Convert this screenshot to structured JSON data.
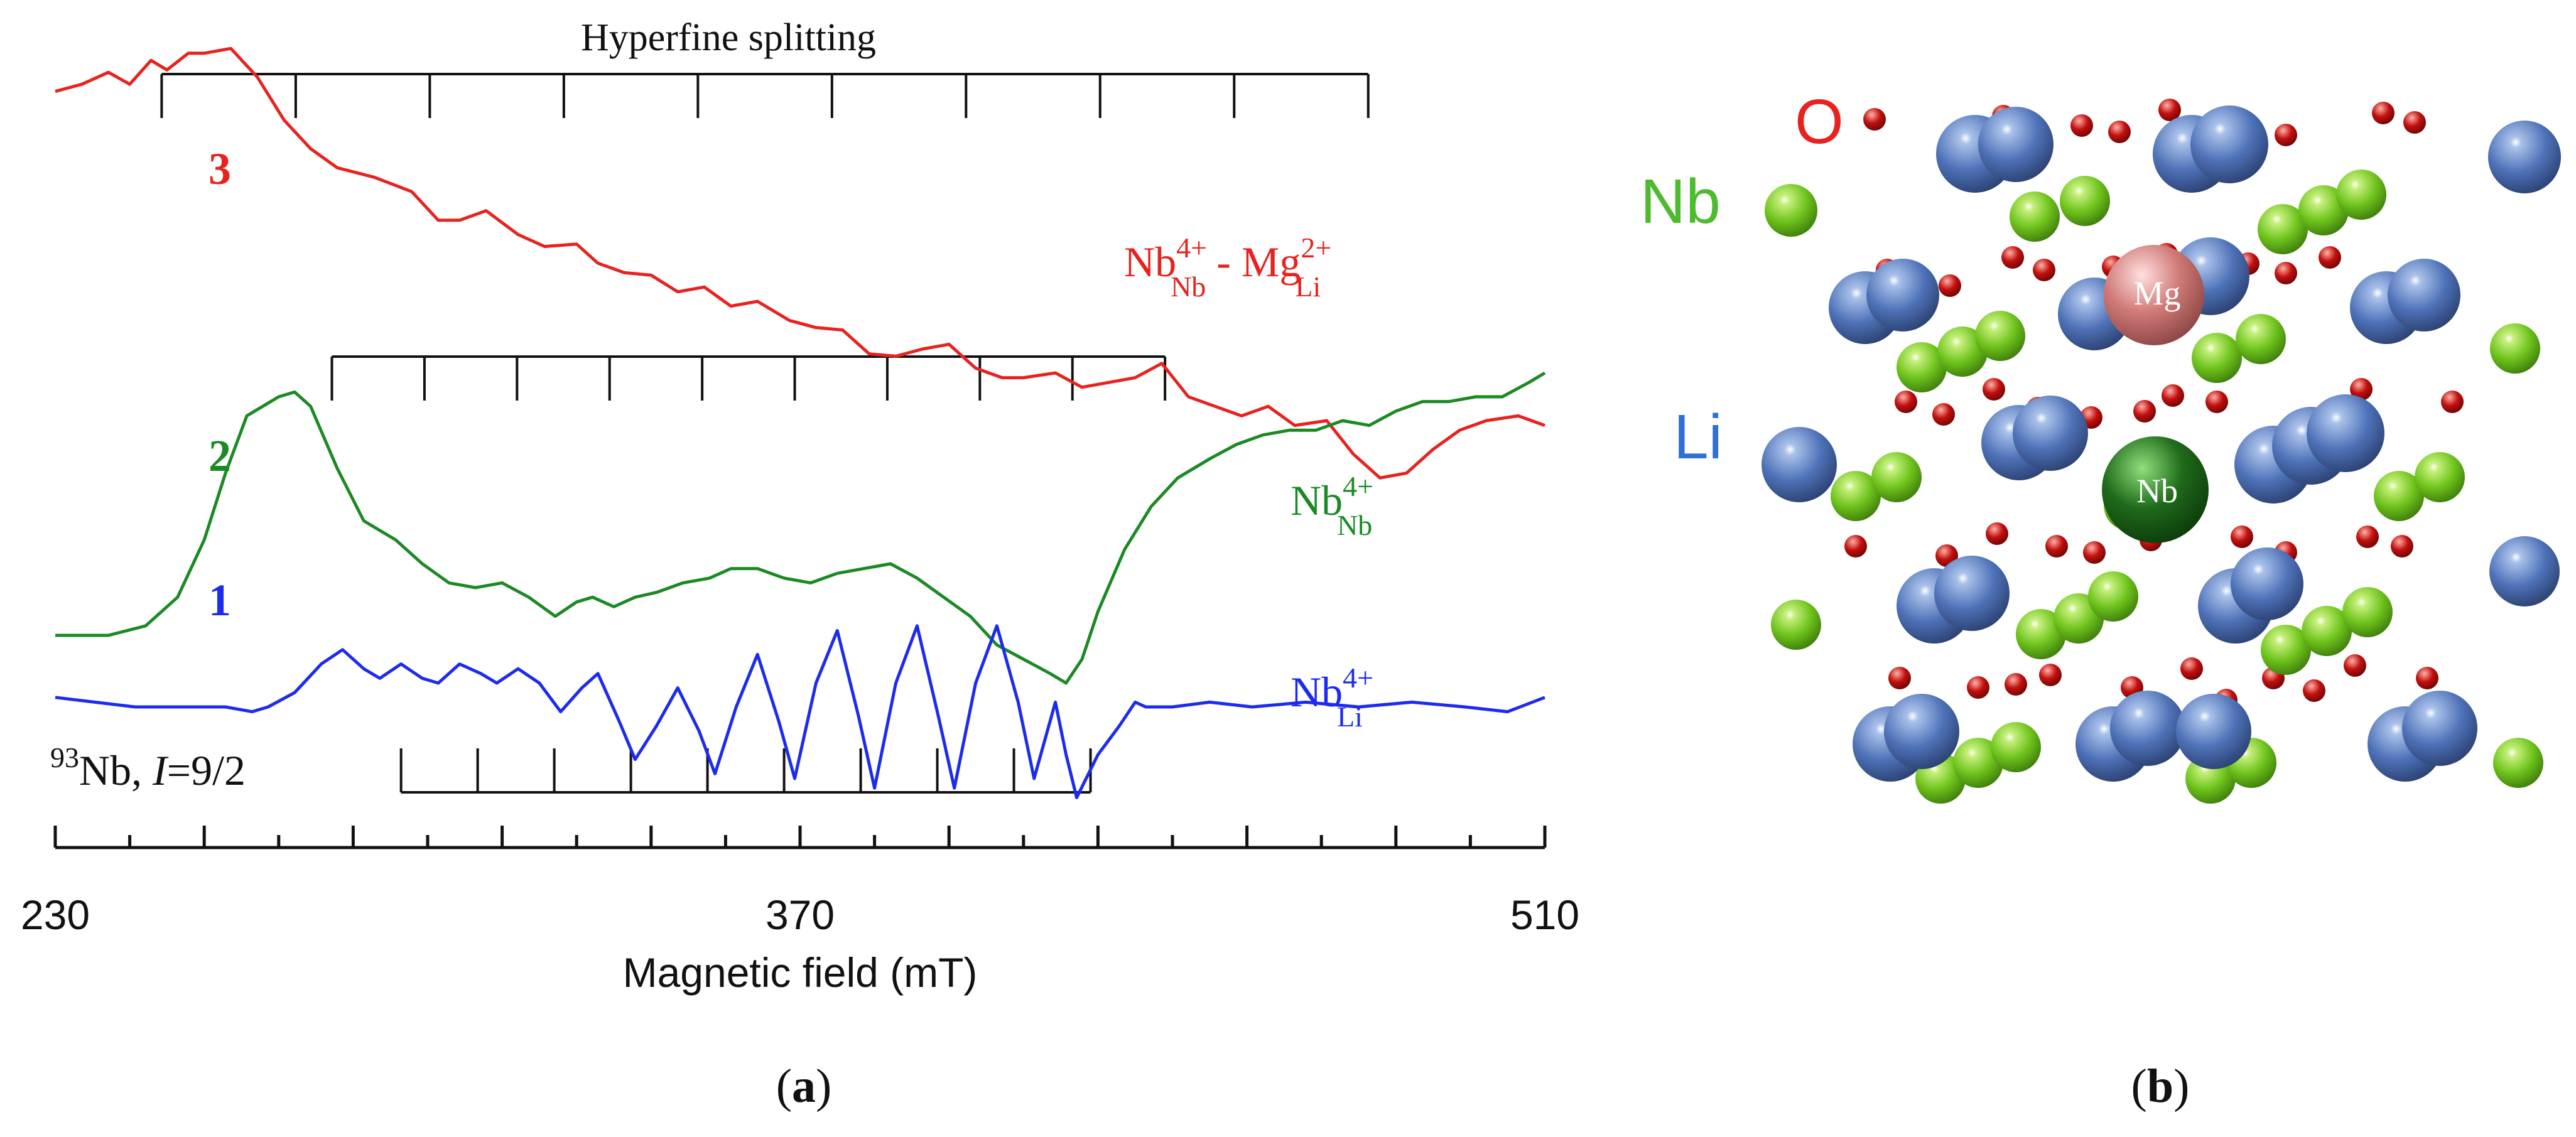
{
  "chart_data": {
    "type": "line",
    "xlabel": "Magnetic field (mT)",
    "xlim": [
      230,
      510
    ],
    "x_tick_labels": [
      230,
      370,
      510
    ],
    "x_major_step": 28,
    "x_minor_step": 14,
    "hyperfine_title": "Hyperfine splitting",
    "nucleus_label": {
      "iso": "93",
      "el": "Nb, ",
      "italic": "I",
      "rest": "=9/2"
    },
    "series": [
      {
        "id": "3",
        "name": "Nb4+Nb - Mg2+Li",
        "color": "#e8221e",
        "label_num": "3",
        "label_parts": {
          "main1": "Nb",
          "sup1": "4+",
          "sub1": "Nb",
          "mid": " - Mg",
          "sup2": "2+",
          "sub2": "Li"
        },
        "points": [
          [
            230,
            0.06
          ],
          [
            235,
            0.045
          ],
          [
            240,
            0.02
          ],
          [
            244,
            0.045
          ],
          [
            248,
            -0.005
          ],
          [
            251,
            0.015
          ],
          [
            255,
            -0.02
          ],
          [
            258,
            -0.02
          ],
          [
            263,
            -0.03
          ],
          [
            268,
            0.03
          ],
          [
            273,
            0.12
          ],
          [
            278,
            0.18
          ],
          [
            283,
            0.22
          ],
          [
            290,
            0.24
          ],
          [
            297,
            0.27
          ],
          [
            302,
            0.33
          ],
          [
            306,
            0.33
          ],
          [
            311,
            0.31
          ],
          [
            317,
            0.36
          ],
          [
            322,
            0.385
          ],
          [
            328,
            0.38
          ],
          [
            332,
            0.42
          ],
          [
            337,
            0.44
          ],
          [
            342,
            0.445
          ],
          [
            347,
            0.48
          ],
          [
            352,
            0.47
          ],
          [
            357,
            0.51
          ],
          [
            362,
            0.5
          ],
          [
            368,
            0.54
          ],
          [
            373,
            0.555
          ],
          [
            378,
            0.56
          ],
          [
            383,
            0.61
          ],
          [
            388,
            0.615
          ],
          [
            393,
            0.6
          ],
          [
            398,
            0.59
          ],
          [
            403,
            0.64
          ],
          [
            408,
            0.66
          ],
          [
            412,
            0.66
          ],
          [
            418,
            0.65
          ],
          [
            423,
            0.68
          ],
          [
            428,
            0.67
          ],
          [
            433,
            0.66
          ],
          [
            438,
            0.63
          ],
          [
            443,
            0.7
          ],
          [
            448,
            0.72
          ],
          [
            453,
            0.74
          ],
          [
            458,
            0.72
          ],
          [
            463,
            0.76
          ],
          [
            469,
            0.75
          ],
          [
            474,
            0.82
          ],
          [
            479,
            0.87
          ],
          [
            484,
            0.86
          ],
          [
            489,
            0.81
          ],
          [
            494,
            0.77
          ],
          [
            499,
            0.75
          ],
          [
            505,
            0.74
          ],
          [
            510,
            0.76
          ]
        ]
      },
      {
        "id": "2",
        "name": "Nb4+Nb",
        "color": "#1b8a24",
        "label_num": "2",
        "label_parts": {
          "main1": "Nb",
          "sup1": "4+",
          "sub1": "Nb"
        },
        "points": [
          [
            230,
            1.2
          ],
          [
            240,
            1.2
          ],
          [
            247,
            1.18
          ],
          [
            253,
            1.12
          ],
          [
            258,
            1.0
          ],
          [
            262,
            0.86
          ],
          [
            266,
            0.74
          ],
          [
            269,
            0.72
          ],
          [
            272,
            0.7
          ],
          [
            275,
            0.69
          ],
          [
            278,
            0.72
          ],
          [
            283,
            0.85
          ],
          [
            288,
            0.96
          ],
          [
            294,
            1.0
          ],
          [
            299,
            1.05
          ],
          [
            304,
            1.09
          ],
          [
            309,
            1.1
          ],
          [
            314,
            1.09
          ],
          [
            319,
            1.12
          ],
          [
            324,
            1.16
          ],
          [
            328,
            1.13
          ],
          [
            331,
            1.12
          ],
          [
            335,
            1.14
          ],
          [
            339,
            1.12
          ],
          [
            343,
            1.11
          ],
          [
            348,
            1.09
          ],
          [
            353,
            1.08
          ],
          [
            357,
            1.06
          ],
          [
            362,
            1.06
          ],
          [
            367,
            1.08
          ],
          [
            372,
            1.09
          ],
          [
            377,
            1.07
          ],
          [
            382,
            1.06
          ],
          [
            387,
            1.05
          ],
          [
            392,
            1.08
          ],
          [
            397,
            1.12
          ],
          [
            402,
            1.16
          ],
          [
            407,
            1.22
          ],
          [
            412,
            1.25
          ],
          [
            417,
            1.28
          ],
          [
            420,
            1.3
          ],
          [
            423,
            1.25
          ],
          [
            426,
            1.15
          ],
          [
            431,
            1.02
          ],
          [
            436,
            0.93
          ],
          [
            441,
            0.87
          ],
          [
            447,
            0.83
          ],
          [
            452,
            0.8
          ],
          [
            457,
            0.78
          ],
          [
            462,
            0.77
          ],
          [
            467,
            0.77
          ],
          [
            472,
            0.75
          ],
          [
            477,
            0.76
          ],
          [
            482,
            0.73
          ],
          [
            487,
            0.71
          ],
          [
            492,
            0.71
          ],
          [
            497,
            0.7
          ],
          [
            502,
            0.7
          ],
          [
            507,
            0.67
          ],
          [
            510,
            0.65
          ]
        ]
      },
      {
        "id": "1",
        "name": "Nb4+Li",
        "color": "#1d2bf0",
        "label_num": "1",
        "label_parts": {
          "main1": "Nb",
          "sup1": "4+",
          "sub1": "Li"
        },
        "points": [
          [
            230,
            1.33
          ],
          [
            245,
            1.35
          ],
          [
            255,
            1.35
          ],
          [
            262,
            1.35
          ],
          [
            267,
            1.36
          ],
          [
            270,
            1.35
          ],
          [
            275,
            1.32
          ],
          [
            280,
            1.26
          ],
          [
            284,
            1.23
          ],
          [
            288,
            1.27
          ],
          [
            291,
            1.29
          ],
          [
            295,
            1.26
          ],
          [
            299,
            1.29
          ],
          [
            302,
            1.3
          ],
          [
            306,
            1.26
          ],
          [
            310,
            1.28
          ],
          [
            313,
            1.3
          ],
          [
            317,
            1.27
          ],
          [
            321,
            1.3
          ],
          [
            325,
            1.36
          ],
          [
            329,
            1.31
          ],
          [
            332,
            1.28
          ],
          [
            336,
            1.38
          ],
          [
            339,
            1.46
          ],
          [
            343,
            1.39
          ],
          [
            347,
            1.31
          ],
          [
            351,
            1.4
          ],
          [
            354,
            1.49
          ],
          [
            358,
            1.35
          ],
          [
            362,
            1.24
          ],
          [
            366,
            1.38
          ],
          [
            369,
            1.5
          ],
          [
            373,
            1.3
          ],
          [
            377,
            1.19
          ],
          [
            381,
            1.37
          ],
          [
            384,
            1.52
          ],
          [
            388,
            1.3
          ],
          [
            392,
            1.18
          ],
          [
            396,
            1.37
          ],
          [
            399,
            1.52
          ],
          [
            403,
            1.3
          ],
          [
            407,
            1.18
          ],
          [
            411,
            1.34
          ],
          [
            414,
            1.5
          ],
          [
            418,
            1.34
          ],
          [
            420,
            1.45
          ],
          [
            422,
            1.54
          ],
          [
            426,
            1.45
          ],
          [
            430,
            1.39
          ],
          [
            433,
            1.34
          ],
          [
            435,
            1.35
          ],
          [
            440,
            1.35
          ],
          [
            447,
            1.34
          ],
          [
            455,
            1.35
          ],
          [
            465,
            1.34
          ],
          [
            475,
            1.35
          ],
          [
            485,
            1.34
          ],
          [
            495,
            1.35
          ],
          [
            503,
            1.36
          ],
          [
            510,
            1.33
          ]
        ]
      }
    ],
    "hyperfine_combs": [
      {
        "series": "3",
        "start": 250,
        "step": 25.2,
        "lines": 10
      },
      {
        "series": "2",
        "start": 282,
        "step": 17.4,
        "lines": 10
      },
      {
        "series": "1",
        "start": 295,
        "step": 14.4,
        "lines": 10
      }
    ]
  },
  "panel_labels": {
    "a": "a",
    "b": "b"
  },
  "crystal": {
    "element_labels": {
      "O": "O",
      "Nb": "Nb",
      "Li": "Li"
    },
    "atom_labels": {
      "Mg": "Mg",
      "Nb": "Nb"
    },
    "colors": {
      "O": "#c2100e",
      "Nb": "#7ed321",
      "Li": "#4e72b8",
      "Mg": "#d07a78",
      "NbCenter": "#1f6b1b",
      "OLabel": "#e8221e",
      "NbLabel": "#4dbb2e",
      "LiLabel": "#2e6fd8"
    }
  }
}
